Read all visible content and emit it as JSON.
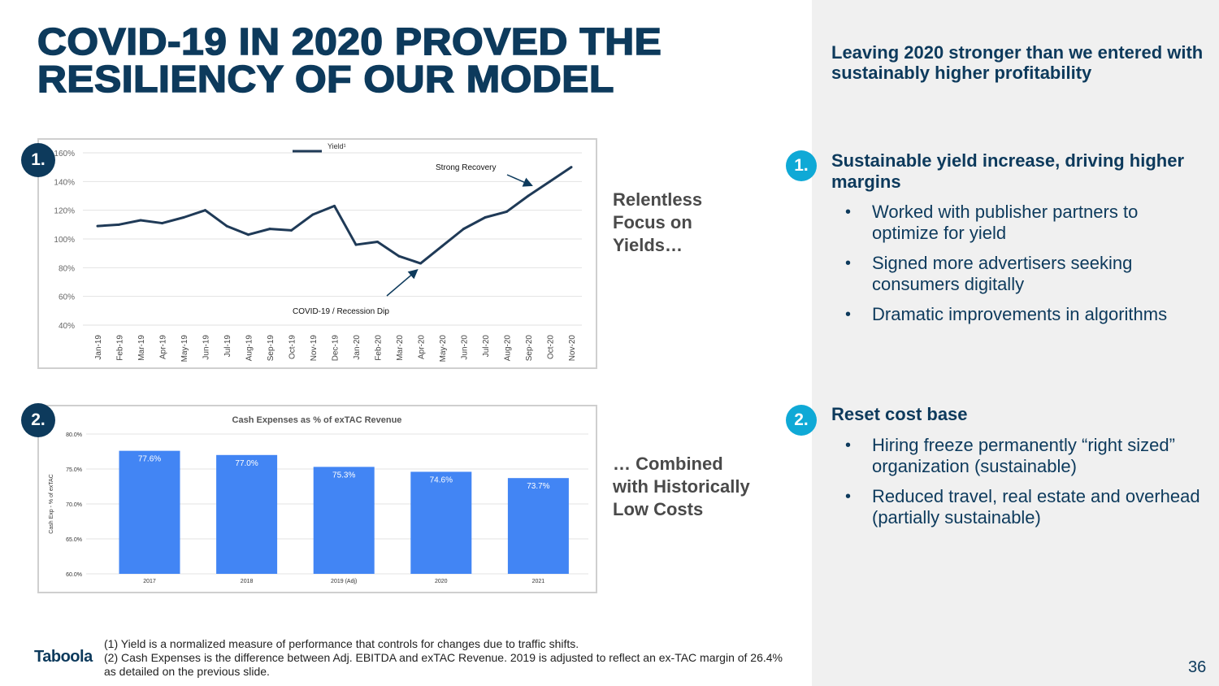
{
  "title": {
    "line1": "COVID-19 IN 2020 PROVED THE",
    "line2": "RESILIENCY OF OUR MODEL"
  },
  "badges": {
    "one": "1.",
    "two": "2."
  },
  "side_text": {
    "top": [
      "Relentless",
      "Focus on",
      "Yields…"
    ],
    "bottom": [
      "… Combined",
      "with Historically",
      "Low Costs"
    ]
  },
  "right_panel": {
    "heading": "Leaving 2020 stronger than we entered with sustainably higher profitability",
    "sections": [
      {
        "badge": "1.",
        "title": "Sustainable yield increase, driving higher margins",
        "bullets": [
          "Worked with publisher partners to optimize for yield",
          "Signed more advertisers seeking consumers digitally",
          "Dramatic improvements in algorithms"
        ]
      },
      {
        "badge": "2.",
        "title": "Reset cost base",
        "bullets": [
          "Hiring freeze permanently “right sized” organization (sustainable)",
          "Reduced travel, real estate and overhead (partially sustainable)"
        ]
      }
    ]
  },
  "footnotes": {
    "one": "(1) Yield is a normalized measure of performance that controls for changes due to traffic shifts.",
    "two": "(2) Cash Expenses is the difference between Adj. EBITDA and exTAC Revenue. 2019 is adjusted to reflect an ex-TAC margin of 26.4% as detailed on the previous slide."
  },
  "logo": "Taboola",
  "page_number": "36",
  "colors": {
    "navy": "#0d3a5c",
    "accent": "#0fa9d6",
    "bar": "#4285f4",
    "panel": "#f0f0f0"
  },
  "chart_data": [
    {
      "type": "line",
      "title": "",
      "legend": "Yield¹",
      "legend_position": "top-center",
      "x": [
        "Jan-19",
        "Feb-19",
        "Mar-19",
        "Apr-19",
        "May-19",
        "Jun-19",
        "Jul-19",
        "Aug-19",
        "Sep-19",
        "Oct-19",
        "Nov-19",
        "Dec-19",
        "Jan-20",
        "Feb-20",
        "Mar-20",
        "Apr-20",
        "May-20",
        "Jun-20",
        "Jul-20",
        "Aug-20",
        "Sep-20",
        "Oct-20",
        "Nov-20"
      ],
      "series": [
        {
          "name": "Yield¹",
          "values": [
            109,
            110,
            113,
            111,
            115,
            120,
            109,
            103,
            107,
            106,
            117,
            123,
            96,
            98,
            88,
            83,
            95,
            107,
            115,
            119,
            130,
            140,
            150
          ]
        }
      ],
      "yticks": [
        "40%",
        "60%",
        "80%",
        "100%",
        "120%",
        "140%",
        "160%"
      ],
      "ylim": [
        40,
        160
      ],
      "grid": true,
      "annotations": [
        {
          "text": "Strong Recovery",
          "x": "Oct-20",
          "y": 140
        },
        {
          "text": "COVID-19 / Recession Dip",
          "x": "Apr-20",
          "y": 83
        }
      ]
    },
    {
      "type": "bar",
      "title": "Cash Expenses as % of exTAC Revenue",
      "ylabel": "Cash Exp - % of exTAC",
      "categories": [
        "2017",
        "2018",
        "2019 (Adj)",
        "2020",
        "2021"
      ],
      "values": [
        77.6,
        77.0,
        75.3,
        74.6,
        73.7
      ],
      "data_labels": [
        "77.6%",
        "77.0%",
        "75.3%",
        "74.6%",
        "73.7%"
      ],
      "yticks": [
        "60.0%",
        "65.0%",
        "70.0%",
        "75.0%",
        "80.0%"
      ],
      "ylim": [
        60,
        80
      ],
      "grid": true
    }
  ]
}
